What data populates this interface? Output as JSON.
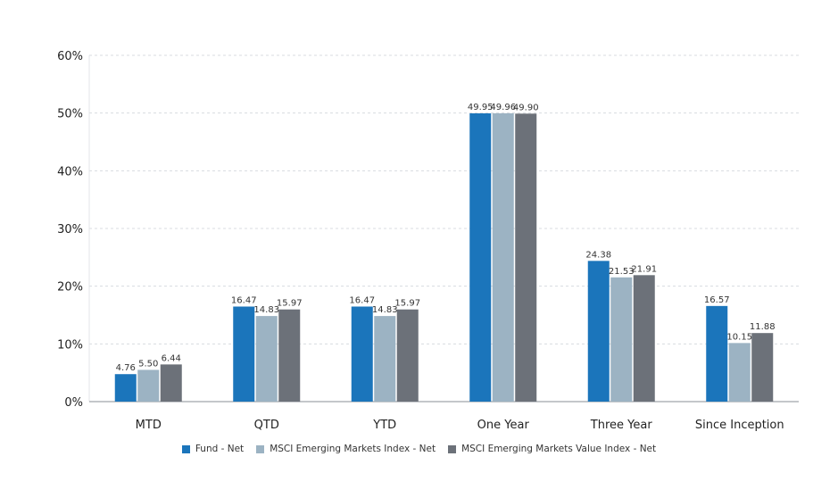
{
  "chart_data": {
    "type": "bar",
    "categories": [
      "MTD",
      "QTD",
      "YTD",
      "One Year",
      "Three Year",
      "Since Inception"
    ],
    "series": [
      {
        "name": "Fund - Net",
        "color": "#1b75bb",
        "values": [
          4.76,
          16.47,
          16.47,
          49.95,
          24.38,
          16.57
        ],
        "labels": [
          "4.76",
          "16.47",
          "16.47",
          "49.95",
          "24.38",
          "16.57"
        ]
      },
      {
        "name": "MSCI Emerging Markets Index - Net",
        "color": "#9cb3c3",
        "values": [
          5.5,
          14.83,
          14.83,
          49.96,
          21.53,
          10.15
        ],
        "labels": [
          "5.50",
          "14.83",
          "14.83",
          "49.96",
          "21.53",
          "10.15"
        ]
      },
      {
        "name": "MSCI Emerging Markets Value Index - Net",
        "color": "#6c7179",
        "values": [
          6.44,
          15.97,
          15.97,
          49.9,
          21.91,
          11.88
        ],
        "labels": [
          "6.44",
          "15.97",
          "15.97",
          "49.90",
          "21.91",
          "11.88"
        ]
      }
    ],
    "ylim": [
      0,
      60
    ],
    "yticks": [
      0,
      10,
      20,
      30,
      40,
      50,
      60
    ],
    "ytick_labels": [
      "0%",
      "10%",
      "20%",
      "30%",
      "40%",
      "50%",
      "60%"
    ],
    "grid": true,
    "legend_position": "bottom"
  }
}
